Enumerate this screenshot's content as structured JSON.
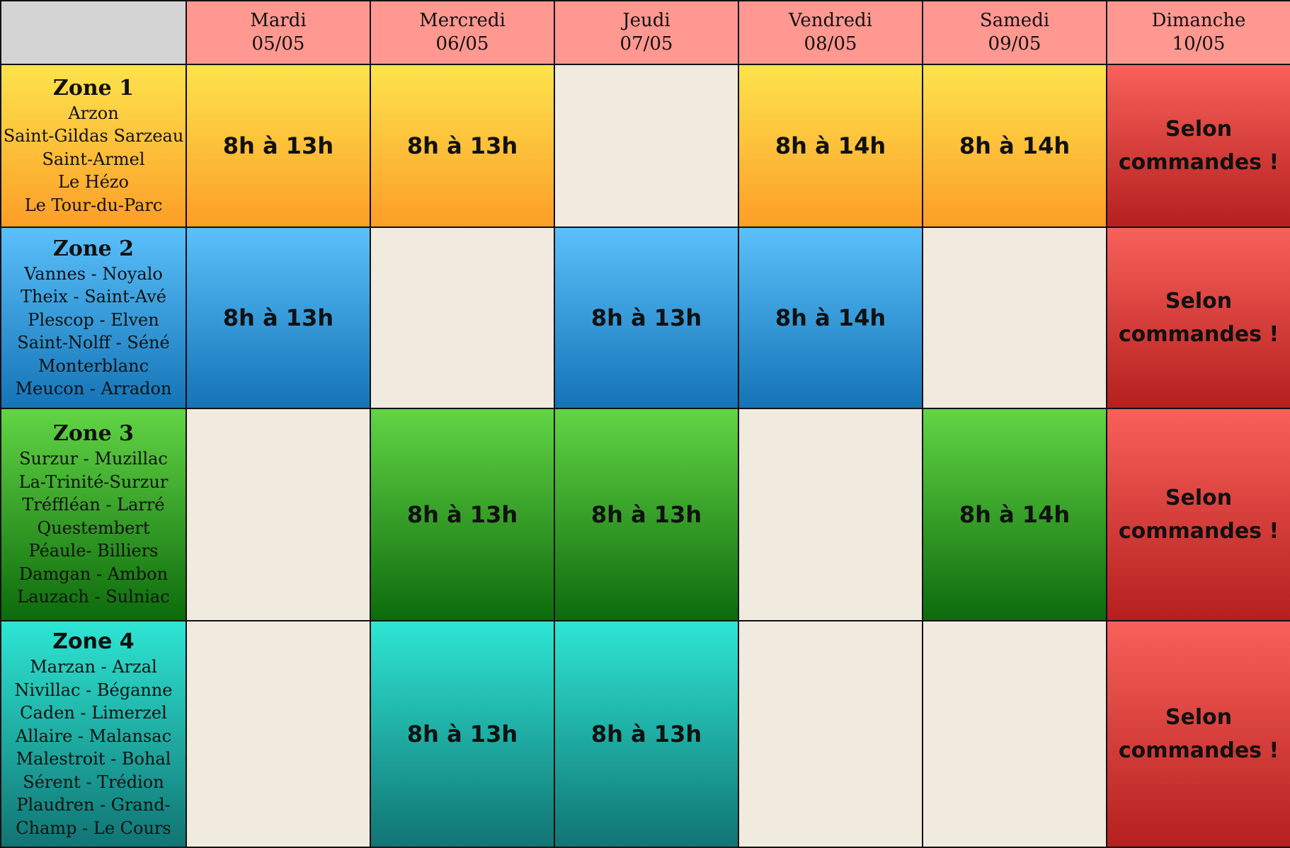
{
  "days": [
    {
      "name": "Mardi",
      "date": "05/05"
    },
    {
      "name": "Mercredi",
      "date": "06/05"
    },
    {
      "name": "Jeudi",
      "date": "07/05"
    },
    {
      "name": "Vendredi",
      "date": "08/05"
    },
    {
      "name": "Samedi",
      "date": "09/05"
    },
    {
      "name": "Dimanche",
      "date": "10/05"
    }
  ],
  "colors": {
    "header": "#ff9890",
    "empty": "#f1ebdf",
    "zone_1": "#fd9e27",
    "zone_2": "#1474b6",
    "zone_3": "#0d6b0c",
    "zone_4": "#117473",
    "sunday": "#b51f1e"
  },
  "sunday_text": {
    "line1": "Selon",
    "line2": "commandes !"
  },
  "zones": [
    {
      "title": "Zone 1",
      "towns": [
        "Arzon",
        "Saint-Gildas Sarzeau",
        "Saint-Armel",
        "Le Hézo",
        "Le Tour-du-Parc"
      ],
      "slots": [
        "8h à 13h",
        "8h à 13h",
        "",
        "8h à 14h",
        "8h à 14h"
      ]
    },
    {
      "title": "Zone 2",
      "towns": [
        "Vannes - Noyalo",
        "Theix - Saint-Avé",
        "Plescop - Elven",
        "Saint-Nolff  - Séné",
        "Monterblanc",
        "Meucon - Arradon"
      ],
      "slots": [
        "8h à 13h",
        "",
        "8h à 13h",
        "8h à 14h",
        ""
      ]
    },
    {
      "title": "Zone 3",
      "towns": [
        "Surzur - Muzillac",
        "La-Trinité-Surzur",
        "Tréffléan - Larré",
        "Questembert",
        "Péaule- Billiers",
        "Damgan - Ambon",
        "Lauzach - Sulniac"
      ],
      "slots": [
        "",
        "8h à 13h",
        "8h à 13h",
        "",
        "8h à 14h"
      ]
    },
    {
      "title": "Zone 4",
      "towns": [
        "Marzan - Arzal",
        "Nivillac - Béganne",
        "Caden - Limerzel",
        "Allaire - Malansac",
        "Malestroit - Bohal",
        "Sérent - Trédion",
        "Plaudren - Grand-",
        "Champ - Le Cours"
      ],
      "slots": [
        "",
        "8h à 13h",
        "8h à 13h",
        "",
        ""
      ]
    }
  ]
}
